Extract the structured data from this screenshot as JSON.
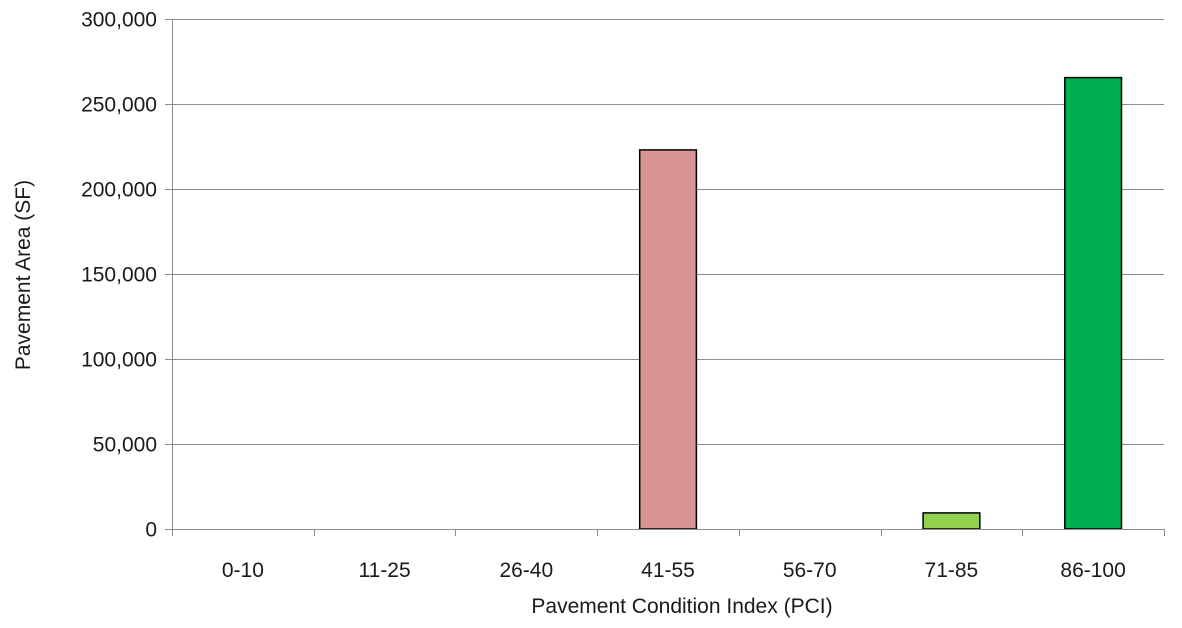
{
  "chart_data": {
    "type": "bar",
    "title": "",
    "xlabel": "Pavement Condition Index (PCI)",
    "ylabel": "Pavement Area (SF)",
    "categories": [
      "0-10",
      "11-25",
      "26-40",
      "41-55",
      "56-70",
      "71-85",
      "86-100"
    ],
    "values": [
      0,
      0,
      0,
      223000,
      0,
      9500,
      265500
    ],
    "bar_colors": [
      "#d99594",
      "#d99594",
      "#d99594",
      "#d99594",
      "#92d050",
      "#92d050",
      "#00b050"
    ],
    "ylim": [
      0,
      300000
    ],
    "yticks": [
      0,
      50000,
      100000,
      150000,
      200000,
      250000,
      300000
    ],
    "ytick_labels": [
      "0",
      "50,000",
      "100,000",
      "150,000",
      "200,000",
      "250,000",
      "300,000"
    ],
    "grid": true,
    "legend": "none"
  }
}
